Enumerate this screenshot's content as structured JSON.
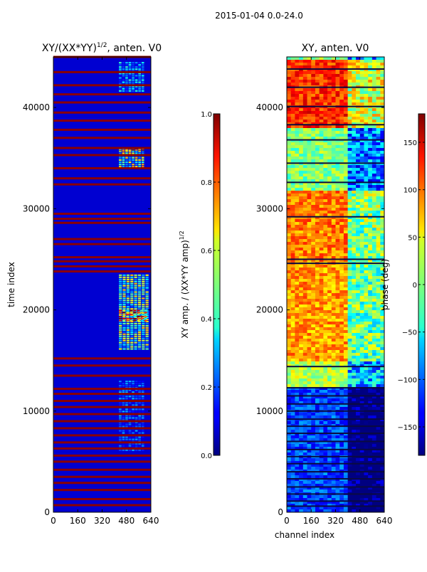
{
  "figure_title": "2015-01-04 0.0-24.0",
  "chart_data": [
    {
      "type": "heatmap",
      "title_main": "XY/(XX*YY)",
      "title_sup": "1/2",
      "title_suffix": ", anten. V0",
      "xlabel": "",
      "ylabel": "time index",
      "xlim": [
        0,
        640
      ],
      "ylim": [
        0,
        45000
      ],
      "xticks": [
        0,
        160,
        320,
        480,
        640
      ],
      "yticks": [
        0,
        10000,
        20000,
        30000,
        40000
      ],
      "colormap": "jet",
      "colorbar": {
        "label_main": "XY amp. / (XX*YY amp)",
        "label_sup": "1/2",
        "min": 0.0,
        "max": 1.0,
        "ticks": [
          0.0,
          0.2,
          0.4,
          0.6,
          0.8,
          1.0
        ],
        "tick_labels": [
          "0.0",
          "0.2",
          "0.4",
          "0.6",
          "0.8",
          "1.0"
        ]
      },
      "background_value": 0.08,
      "flagged_rows_time_index": [
        700,
        1300,
        2200,
        2900,
        3500,
        4200,
        5000,
        5600,
        6300,
        6900,
        7600,
        8300,
        9000,
        9700,
        10400,
        11000,
        11700,
        12200,
        13500,
        14500,
        15200,
        23800,
        24300,
        24800,
        25200,
        26500,
        27000,
        28600,
        29000,
        29500,
        32400,
        33000,
        34000,
        35300,
        36000,
        37000,
        37800,
        38700,
        39500,
        40500,
        41300,
        42200,
        43500,
        45000
      ],
      "bright_regions": [
        {
          "t0": 16000,
          "t1": 23500,
          "c0": 430,
          "c1": 630,
          "value": 0.55
        },
        {
          "t0": 18800,
          "t1": 20000,
          "c0": 430,
          "c1": 620,
          "value": 0.85
        },
        {
          "t0": 34000,
          "t1": 36000,
          "c0": 430,
          "c1": 600,
          "value": 0.6
        },
        {
          "t0": 35700,
          "t1": 36000,
          "c0": 430,
          "c1": 600,
          "value": 0.95
        },
        {
          "t0": 41500,
          "t1": 44500,
          "c0": 430,
          "c1": 600,
          "value": 0.35
        },
        {
          "t0": 6000,
          "t1": 13000,
          "c0": 430,
          "c1": 600,
          "value": 0.25
        }
      ]
    },
    {
      "type": "heatmap",
      "title": "XY, anten. V0",
      "xlabel": "channel index",
      "ylabel": "",
      "xlim": [
        0,
        640
      ],
      "ylim": [
        0,
        45000
      ],
      "xticks": [
        0,
        160,
        320,
        480,
        640
      ],
      "yticks": [
        0,
        10000,
        20000,
        30000,
        40000
      ],
      "colormap": "jet",
      "colorbar": {
        "label": "phase (deg)",
        "min": -180,
        "max": 180,
        "ticks": [
          -150,
          -100,
          -50,
          0,
          50,
          100,
          150
        ],
        "tick_labels": [
          "−150",
          "−100",
          "−50",
          "0",
          "50",
          "100",
          "150"
        ]
      },
      "band_values_by_time": [
        {
          "t0": 0,
          "t1": 12500,
          "value": -110
        },
        {
          "t0": 12500,
          "t1": 15000,
          "value": 20
        },
        {
          "t0": 15000,
          "t1": 25000,
          "value": 80
        },
        {
          "t0": 25000,
          "t1": 32000,
          "value": 90
        },
        {
          "t0": 32000,
          "t1": 38000,
          "value": 0
        },
        {
          "t0": 38000,
          "t1": 45000,
          "value": 120
        }
      ],
      "flagged_rows_time_index": [
        600,
        1100,
        1800,
        2500,
        3300,
        4000,
        4800,
        5500,
        6200,
        7000,
        7800,
        8500,
        9200,
        10000,
        10700,
        11500,
        12300,
        14400,
        24600,
        25000,
        29200,
        32600,
        34500,
        36800,
        38300,
        40100,
        42000,
        43800
      ]
    }
  ]
}
